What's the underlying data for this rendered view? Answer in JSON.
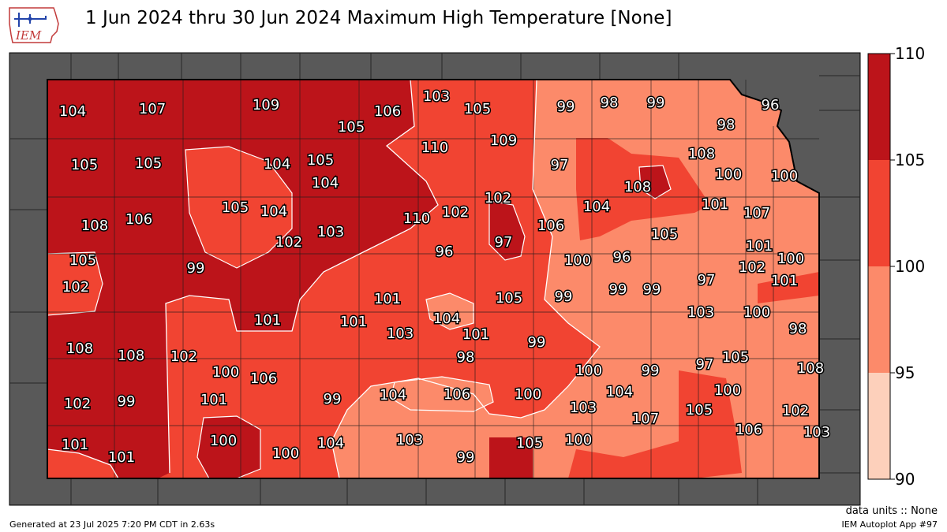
{
  "title": "1 Jun 2024 thru 30 Jun 2024 Maximum High Temperature [None]",
  "logo": {
    "text": "IEM",
    "name": "iem-logo"
  },
  "colorbar": {
    "ticks": [
      "110",
      "105",
      "100",
      "95",
      "90"
    ],
    "bands": [
      {
        "range": [
          105,
          110
        ],
        "color": "#bc141a"
      },
      {
        "range": [
          100,
          105
        ],
        "color": "#f14432"
      },
      {
        "range": [
          95,
          100
        ],
        "color": "#fc8a6a"
      },
      {
        "range": [
          90,
          95
        ],
        "color": "#fdd0bb"
      }
    ]
  },
  "colors": {
    "outside_land": "#595959",
    "background_outside": "#ffffff"
  },
  "footer": {
    "data_units": "data units :: None",
    "app": "IEM Autoplot App #97",
    "generated": "Generated at 23 Jul 2025 7:20 PM CDT in 2.63s"
  },
  "values": [
    "104",
    "107",
    "109",
    "106",
    "103",
    "105",
    "99",
    "98",
    "99",
    "96",
    "105",
    "98",
    "105",
    "105",
    "109",
    "110",
    "108",
    "104",
    "105",
    "97",
    "100",
    "100",
    "104",
    "108",
    "102",
    "104",
    "105",
    "104",
    "102",
    "101",
    "107",
    "108",
    "106",
    "110",
    "103",
    "106",
    "102",
    "97",
    "105",
    "105",
    "99",
    "96",
    "100",
    "96",
    "101",
    "100",
    "97",
    "102",
    "102",
    "101",
    "99",
    "99",
    "99",
    "105",
    "101",
    "101",
    "101",
    "103",
    "100",
    "98",
    "108",
    "108",
    "104",
    "101",
    "103",
    "99",
    "102",
    "98",
    "97",
    "105",
    "100",
    "100",
    "99",
    "108",
    "106",
    "104",
    "100",
    "102",
    "99",
    "101",
    "99",
    "104",
    "106",
    "100",
    "103",
    "105",
    "102",
    "100",
    "107",
    "106",
    "103",
    "104",
    "101",
    "103",
    "105",
    "100",
    "100",
    "101",
    "99"
  ]
}
